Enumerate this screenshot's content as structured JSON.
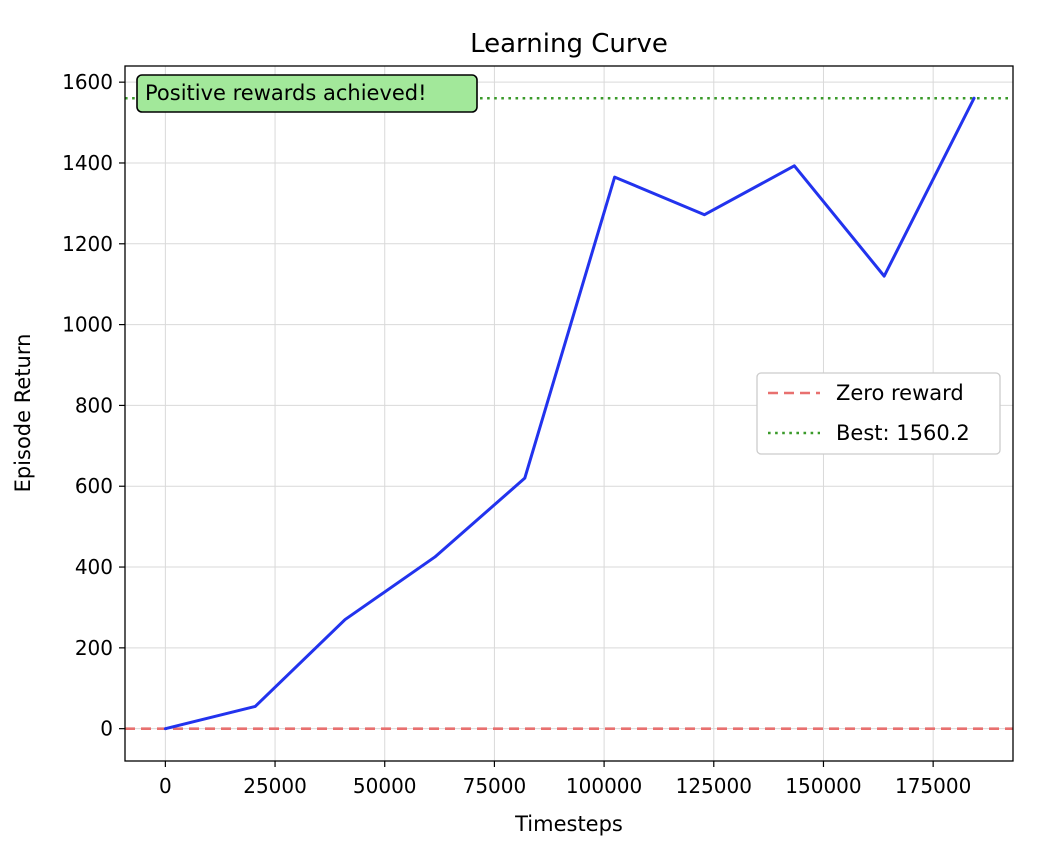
{
  "chart_data": {
    "type": "line",
    "title": "Learning Curve",
    "xlabel": "Timesteps",
    "ylabel": "Episode Return",
    "xlim": [
      -9200,
      193200
    ],
    "ylim": [
      -80,
      1640
    ],
    "xticks": [
      0,
      25000,
      50000,
      75000,
      100000,
      125000,
      150000,
      175000
    ],
    "xtick_labels": [
      "0",
      "25000",
      "50000",
      "75000",
      "100000",
      "125000",
      "150000",
      "175000"
    ],
    "yticks": [
      0,
      200,
      400,
      600,
      800,
      1000,
      1200,
      1400,
      1600
    ],
    "ytick_labels": [
      "0",
      "200",
      "400",
      "600",
      "800",
      "1000",
      "1200",
      "1400",
      "1600"
    ],
    "grid": true,
    "series": [
      {
        "color": "#2233ee",
        "x": [
          0,
          20480,
          40960,
          61440,
          81920,
          102400,
          122880,
          143360,
          163840,
          184320
        ],
        "y": [
          0,
          55,
          270,
          425,
          620,
          1365,
          1272,
          1393,
          1120,
          1560.2
        ]
      }
    ],
    "reference_lines": [
      {
        "name": "Zero reward",
        "y": 0,
        "style": "dashed",
        "color": "#e8706f"
      },
      {
        "name": "Best: 1560.2",
        "y": 1560.2,
        "style": "dotted",
        "color": "#3a9a2a"
      }
    ],
    "legend": {
      "placement": "center-right",
      "entries": [
        "Zero reward",
        "Best: 1560.2"
      ]
    },
    "annotation": {
      "text": "Positive rewards achieved!",
      "background": "#a2e89a",
      "placement": "top-left"
    }
  }
}
